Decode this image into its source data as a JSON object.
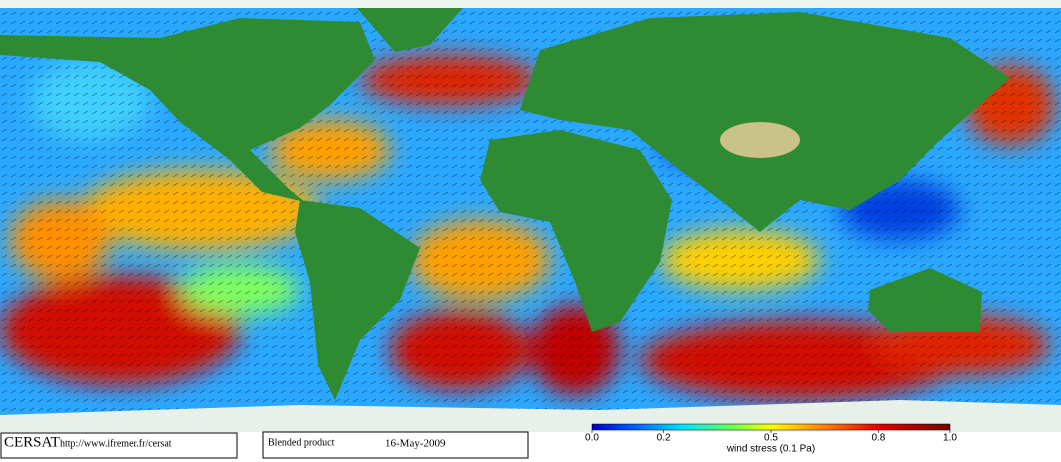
{
  "footer": {
    "logo": "CERSAT",
    "url": "http://www.ifremer.fr/cersat",
    "product": "Blended product",
    "date": "16-May-2009"
  },
  "colorbar": {
    "label": "wind stress (0.1 Pa)",
    "lim": [
      0,
      1
    ],
    "ticks": [
      {
        "value": 0,
        "label": "0.0"
      },
      0.2,
      0.5,
      0.8,
      {
        "value": 1,
        "label": "1.0"
      }
    ]
  }
}
